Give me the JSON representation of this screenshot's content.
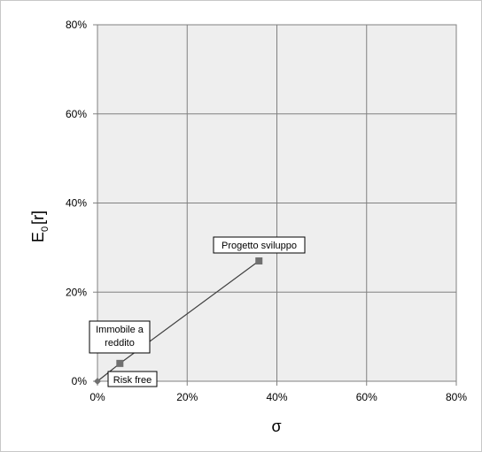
{
  "chart_data": {
    "type": "scatter",
    "xlabel": "σ",
    "ylabel_main": "E",
    "ylabel_sub": "0",
    "ylabel_suffix": "[r]",
    "xlim": [
      0,
      80
    ],
    "ylim": [
      0,
      80
    ],
    "x_ticks": [
      0,
      20,
      40,
      60,
      80
    ],
    "y_ticks": [
      0,
      20,
      40,
      60,
      80
    ],
    "x_tick_labels": [
      "0%",
      "20%",
      "40%",
      "60%",
      "80%"
    ],
    "y_tick_labels": [
      "0%",
      "20%",
      "40%",
      "60%",
      "80%"
    ],
    "grid": true,
    "plot_background": "#eeeeee",
    "grid_color": "#808080",
    "line_color": "#404040",
    "marker_color": "#707070",
    "points": [
      {
        "x": 0,
        "y": 0,
        "label": "Risk free"
      },
      {
        "x": 5,
        "y": 4,
        "label": "Immobile a reddito"
      },
      {
        "x": 36,
        "y": 27,
        "label": "Progetto sviluppo"
      }
    ]
  }
}
